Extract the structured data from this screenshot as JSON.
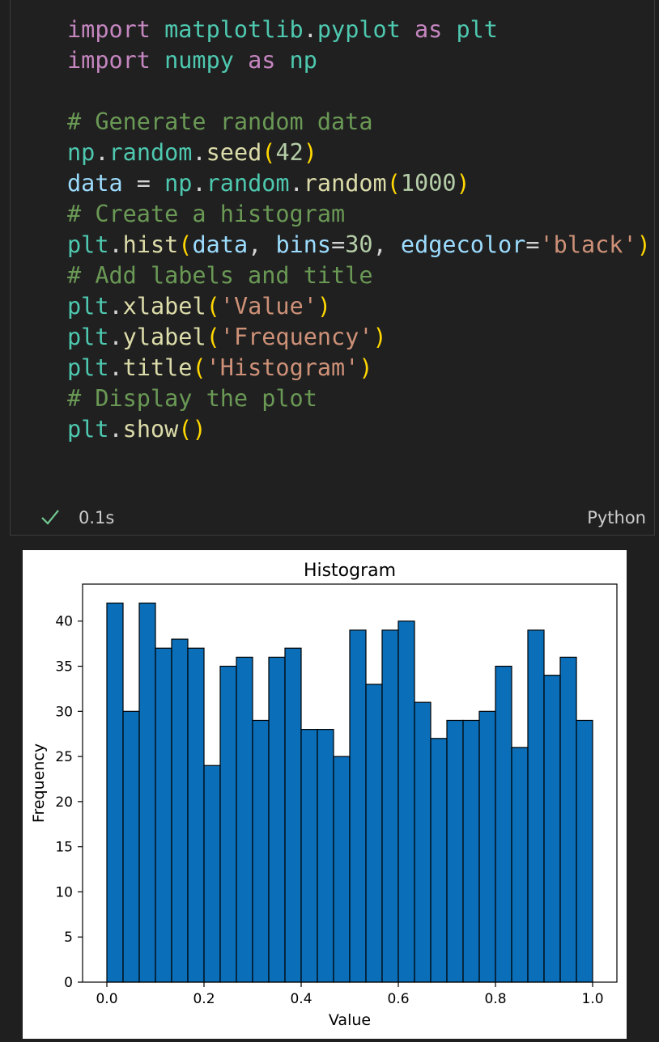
{
  "cell": {
    "code_lines": [
      [
        {
          "t": "import",
          "c": "kw"
        },
        {
          "t": " matplotlib",
          "c": "mod"
        },
        {
          "t": ".",
          "c": "op"
        },
        {
          "t": "pyplot",
          "c": "mod"
        },
        {
          "t": " as",
          "c": "kw"
        },
        {
          "t": " plt",
          "c": "mod"
        }
      ],
      [
        {
          "t": "import",
          "c": "kw"
        },
        {
          "t": " numpy",
          "c": "mod"
        },
        {
          "t": " as",
          "c": "kw"
        },
        {
          "t": " np",
          "c": "mod"
        }
      ],
      [],
      [
        {
          "t": "# Generate random data",
          "c": "com"
        }
      ],
      [
        {
          "t": "np",
          "c": "mod"
        },
        {
          "t": ".",
          "c": "op"
        },
        {
          "t": "random",
          "c": "mod"
        },
        {
          "t": ".",
          "c": "op"
        },
        {
          "t": "seed",
          "c": "fn"
        },
        {
          "t": "(",
          "c": "p1"
        },
        {
          "t": "42",
          "c": "num"
        },
        {
          "t": ")",
          "c": "p1"
        }
      ],
      [
        {
          "t": "data",
          "c": "var"
        },
        {
          "t": " = ",
          "c": "op"
        },
        {
          "t": "np",
          "c": "mod"
        },
        {
          "t": ".",
          "c": "op"
        },
        {
          "t": "random",
          "c": "mod"
        },
        {
          "t": ".",
          "c": "op"
        },
        {
          "t": "random",
          "c": "fn"
        },
        {
          "t": "(",
          "c": "p1"
        },
        {
          "t": "1000",
          "c": "num"
        },
        {
          "t": ")",
          "c": "p1"
        }
      ],
      [
        {
          "t": "# Create a histogram",
          "c": "com"
        }
      ],
      [
        {
          "t": "plt",
          "c": "mod"
        },
        {
          "t": ".",
          "c": "op"
        },
        {
          "t": "hist",
          "c": "fn"
        },
        {
          "t": "(",
          "c": "p1"
        },
        {
          "t": "data",
          "c": "var"
        },
        {
          "t": ", ",
          "c": "op"
        },
        {
          "t": "bins",
          "c": "var"
        },
        {
          "t": "=",
          "c": "op"
        },
        {
          "t": "30",
          "c": "num"
        },
        {
          "t": ", ",
          "c": "op"
        },
        {
          "t": "edgecolor",
          "c": "var"
        },
        {
          "t": "=",
          "c": "op"
        },
        {
          "t": "'black'",
          "c": "str"
        },
        {
          "t": ")",
          "c": "p1"
        }
      ],
      [
        {
          "t": "# Add labels and title",
          "c": "com"
        }
      ],
      [
        {
          "t": "plt",
          "c": "mod"
        },
        {
          "t": ".",
          "c": "op"
        },
        {
          "t": "xlabel",
          "c": "fn"
        },
        {
          "t": "(",
          "c": "p1"
        },
        {
          "t": "'Value'",
          "c": "str"
        },
        {
          "t": ")",
          "c": "p1"
        }
      ],
      [
        {
          "t": "plt",
          "c": "mod"
        },
        {
          "t": ".",
          "c": "op"
        },
        {
          "t": "ylabel",
          "c": "fn"
        },
        {
          "t": "(",
          "c": "p1"
        },
        {
          "t": "'Frequency'",
          "c": "str"
        },
        {
          "t": ")",
          "c": "p1"
        }
      ],
      [
        {
          "t": "plt",
          "c": "mod"
        },
        {
          "t": ".",
          "c": "op"
        },
        {
          "t": "title",
          "c": "fn"
        },
        {
          "t": "(",
          "c": "p1"
        },
        {
          "t": "'Histogram'",
          "c": "str"
        },
        {
          "t": ")",
          "c": "p1"
        }
      ],
      [
        {
          "t": "# Display the plot",
          "c": "com"
        }
      ],
      [
        {
          "t": "plt",
          "c": "mod"
        },
        {
          "t": ".",
          "c": "op"
        },
        {
          "t": "show",
          "c": "fn"
        },
        {
          "t": "()",
          "c": "p1"
        }
      ]
    ],
    "status_icon": "check-icon",
    "execution_time": "0.1s",
    "language": "Python"
  },
  "colors": {
    "bar_fill": "#0a6eb8",
    "bar_edge": "#000000",
    "check": "#73c991"
  },
  "chart_data": {
    "type": "bar",
    "title": "Histogram",
    "xlabel": "Value",
    "ylabel": "Frequency",
    "bin_edges_start": 0.0,
    "bin_edges_end": 1.0,
    "bins": 30,
    "values": [
      42,
      30,
      42,
      37,
      38,
      37,
      24,
      35,
      36,
      29,
      36,
      37,
      28,
      28,
      25,
      39,
      33,
      39,
      40,
      31,
      27,
      29,
      29,
      30,
      35,
      26,
      39,
      34,
      36,
      29
    ],
    "xlim": [
      -0.05,
      1.05
    ],
    "ylim": [
      0,
      44.1
    ],
    "xticks": [
      "0.0",
      "0.2",
      "0.4",
      "0.6",
      "0.8",
      "1.0"
    ],
    "xtick_values": [
      0.0,
      0.2,
      0.4,
      0.6,
      0.8,
      1.0
    ],
    "yticks": [
      "0",
      "5",
      "10",
      "15",
      "20",
      "25",
      "30",
      "35",
      "40"
    ],
    "ytick_values": [
      0,
      5,
      10,
      15,
      20,
      25,
      30,
      35,
      40
    ],
    "grid": false
  }
}
